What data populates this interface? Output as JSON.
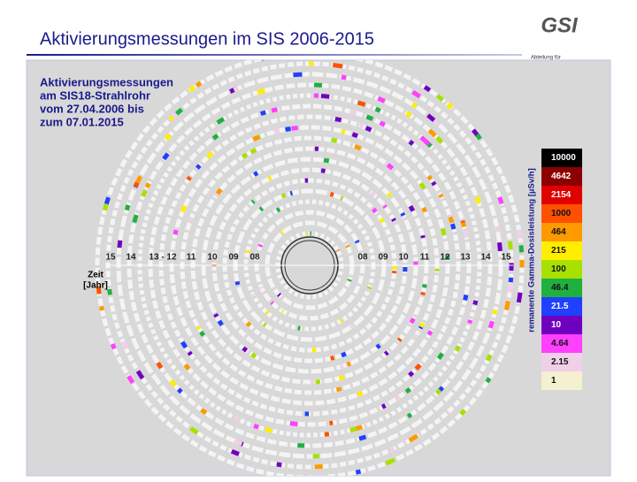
{
  "header": {
    "title": "Aktivierungsmessungen im SIS 2006-2015",
    "logo": "GSI",
    "department": "Abteilung für"
  },
  "figure": {
    "title_lines": [
      "Aktivierungsmessungen",
      "am SIS18-Strahlrohr",
      "vom 27.04.2006 bis",
      "zum 07.01.2015"
    ],
    "axis_label_lines": [
      "Zeit",
      "[Jahr]"
    ],
    "left_years": [
      "15",
      "14",
      "13 - 12",
      "11",
      "10",
      "09",
      "08"
    ],
    "right_years": [
      "08",
      "09",
      "10",
      "11",
      "12",
      "13",
      "14",
      "15"
    ],
    "colorbar_title": "remanente Gamma-Dosisleistung [µSv/h]",
    "colorbar_labels": [
      "10000",
      "4642",
      "2154",
      "1000",
      "464",
      "215",
      "100",
      "46.4",
      "21.5",
      "10",
      "4.64",
      "2.15",
      "1"
    ]
  }
}
